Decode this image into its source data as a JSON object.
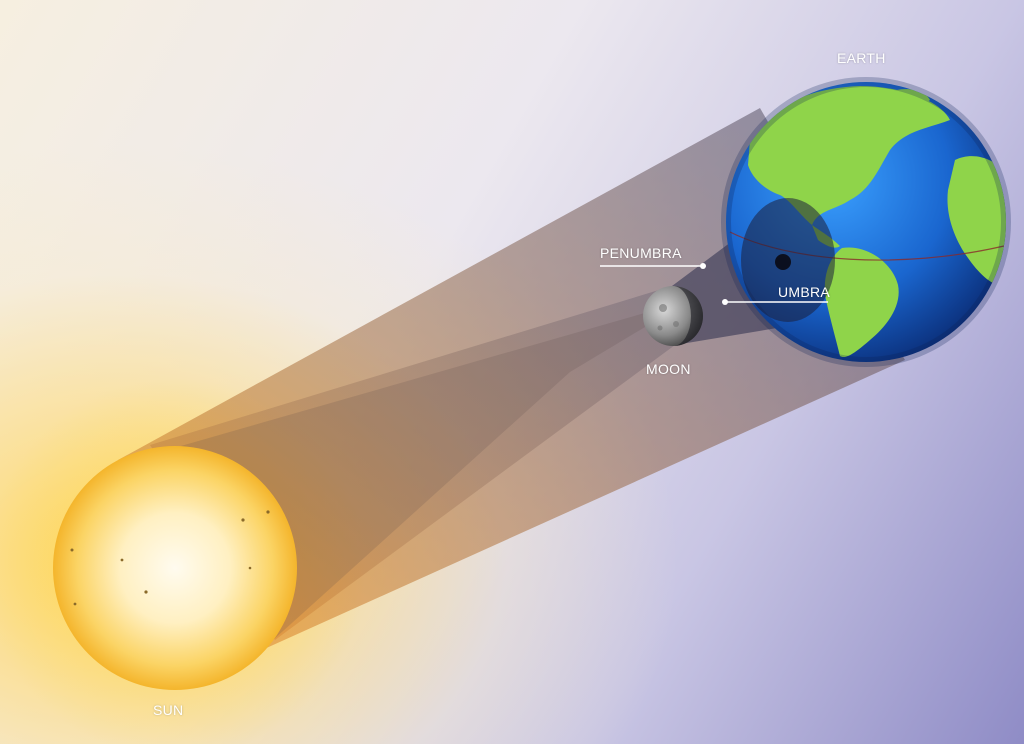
{
  "labels": {
    "earth": "EARTH",
    "penumbra": "PENUMBRA",
    "umbra": "UMBRA",
    "moon": "MOON",
    "sun": "SUN"
  },
  "colors": {
    "sun_core": "#fff6dc",
    "sun_edge": "#f7c236",
    "ocean": "#1f6fd0",
    "land": "#8fd44a",
    "moon": "#8e8e8e",
    "shadow": "#2a2d4a",
    "label": "#ffffff"
  }
}
